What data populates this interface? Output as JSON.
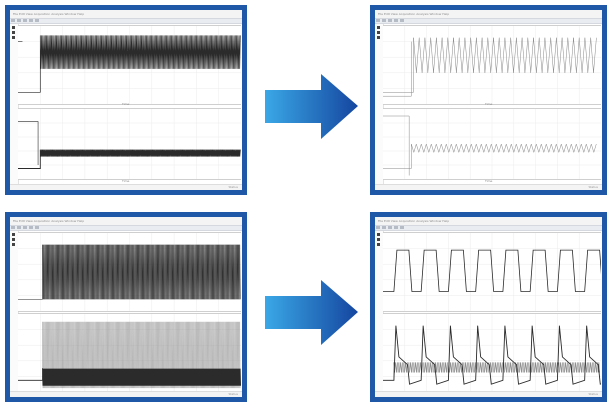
{
  "window_titlebar_text": "File  Edit  View  Acquisition  Analysis  Window  Help",
  "plot_axis_label": "Time",
  "statusbar_text": "Status",
  "colors": {
    "panel_border": "#1e58a6",
    "arrow_light": "#3aa8e6",
    "arrow_dark": "#1546a0",
    "trace": "#2b2b2b"
  },
  "icons": [
    "arrow-right-icon"
  ]
}
